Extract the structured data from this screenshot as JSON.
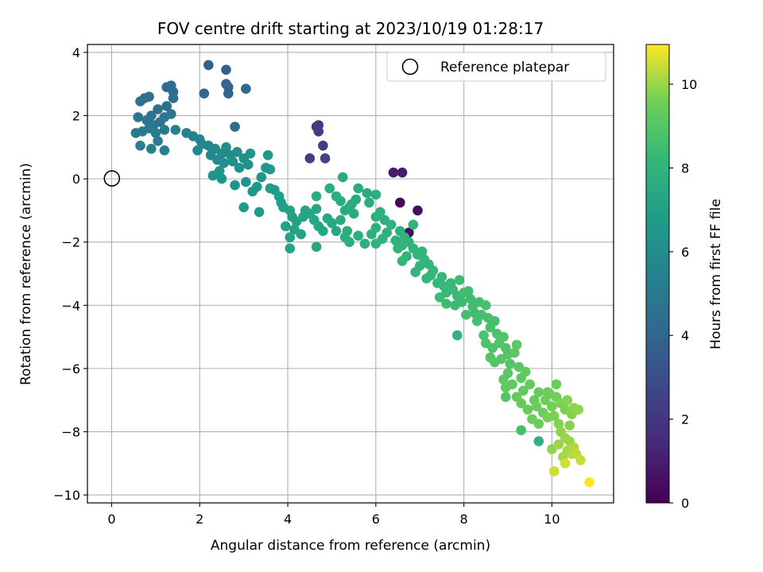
{
  "chart_data": {
    "type": "scatter",
    "title": "FOV centre drift starting at 2023/10/19 01:28:17",
    "xlabel": "Angular distance from reference (arcmin)",
    "ylabel": "Rotation from reference (arcmin)",
    "xlim": [
      -0.55,
      11.4
    ],
    "ylim": [
      -10.25,
      4.25
    ],
    "x_ticks": [
      0,
      2,
      4,
      6,
      8,
      10
    ],
    "y_ticks": [
      -10,
      -8,
      -6,
      -4,
      -2,
      0,
      2,
      4
    ],
    "grid": true,
    "legend": {
      "placement": "top-right",
      "entries": [
        "Reference platepar"
      ]
    },
    "reference_point": {
      "x": 0,
      "y": 0,
      "label": "Reference platepar"
    },
    "colorbar": {
      "label": "Hours from first FF file",
      "min": 0,
      "max": 10.95,
      "ticks": [
        0,
        2,
        4,
        6,
        8,
        10
      ],
      "colormap": "viridis"
    },
    "series": [
      {
        "points": [
          [
            6.55,
            -0.75,
            0.3
          ],
          [
            6.95,
            -1.0,
            0.4
          ],
          [
            6.6,
            0.2,
            0.9
          ],
          [
            6.4,
            0.2,
            1.0
          ],
          [
            6.75,
            -1.7,
            0.5
          ],
          [
            4.65,
            1.65,
            2.0
          ],
          [
            4.7,
            1.7,
            2.1
          ],
          [
            4.7,
            1.5,
            2.2
          ],
          [
            4.8,
            1.05,
            2.3
          ],
          [
            4.5,
            0.65,
            2.4
          ],
          [
            4.85,
            0.65,
            2.5
          ],
          [
            2.2,
            3.6,
            3.7
          ],
          [
            2.6,
            3.45,
            3.8
          ],
          [
            2.6,
            3.0,
            3.9
          ],
          [
            2.65,
            2.9,
            4.0
          ],
          [
            2.65,
            2.7,
            4.0
          ],
          [
            2.1,
            2.7,
            4.1
          ],
          [
            3.05,
            2.85,
            4.1
          ],
          [
            2.8,
            1.65,
            4.2
          ],
          [
            1.25,
            2.9,
            4.3
          ],
          [
            1.35,
            2.95,
            4.3
          ],
          [
            1.4,
            2.75,
            4.4
          ],
          [
            1.4,
            2.55,
            4.4
          ],
          [
            1.25,
            2.3,
            4.5
          ],
          [
            0.75,
            2.55,
            4.5
          ],
          [
            0.85,
            2.6,
            4.5
          ],
          [
            0.65,
            2.45,
            4.6
          ],
          [
            1.05,
            2.2,
            4.6
          ],
          [
            0.9,
            2.0,
            4.7
          ],
          [
            1.1,
            1.8,
            4.7
          ],
          [
            0.6,
            1.95,
            4.8
          ],
          [
            0.8,
            1.85,
            4.8
          ],
          [
            0.95,
            1.7,
            4.8
          ],
          [
            1.2,
            1.95,
            4.9
          ],
          [
            1.35,
            2.05,
            4.9
          ],
          [
            0.7,
            1.5,
            5.0
          ],
          [
            0.55,
            1.45,
            5.0
          ],
          [
            0.85,
            1.6,
            5.0
          ],
          [
            1.0,
            1.45,
            5.1
          ],
          [
            1.2,
            1.55,
            5.1
          ],
          [
            0.65,
            1.05,
            5.2
          ],
          [
            0.9,
            0.95,
            5.2
          ],
          [
            1.05,
            1.2,
            5.2
          ],
          [
            1.2,
            0.9,
            5.3
          ],
          [
            1.45,
            1.55,
            5.3
          ],
          [
            1.7,
            1.45,
            5.5
          ],
          [
            1.85,
            1.35,
            5.5
          ],
          [
            2.0,
            1.25,
            5.6
          ],
          [
            2.05,
            1.1,
            5.6
          ],
          [
            2.2,
            1.05,
            5.7
          ],
          [
            1.95,
            0.9,
            5.7
          ],
          [
            2.25,
            0.75,
            5.8
          ],
          [
            2.35,
            0.95,
            5.8
          ],
          [
            2.4,
            0.6,
            5.9
          ],
          [
            2.5,
            0.8,
            5.9
          ],
          [
            2.55,
            0.5,
            6.0
          ],
          [
            2.6,
            1.0,
            6.0
          ],
          [
            2.7,
            0.75,
            6.0
          ],
          [
            2.75,
            0.55,
            6.1
          ],
          [
            2.85,
            0.85,
            6.1
          ],
          [
            2.9,
            0.35,
            6.2
          ],
          [
            3.0,
            0.65,
            6.2
          ],
          [
            3.1,
            0.45,
            6.2
          ],
          [
            3.15,
            0.8,
            6.3
          ],
          [
            2.45,
            0.25,
            6.3
          ],
          [
            2.3,
            0.1,
            6.3
          ],
          [
            2.5,
            0.0,
            6.4
          ],
          [
            2.8,
            -0.2,
            6.4
          ],
          [
            3.05,
            -0.1,
            6.4
          ],
          [
            3.2,
            -0.4,
            6.5
          ],
          [
            3.3,
            -0.25,
            6.5
          ],
          [
            3.4,
            0.05,
            6.5
          ],
          [
            3.5,
            0.35,
            6.6
          ],
          [
            3.55,
            0.75,
            6.6
          ],
          [
            3.6,
            0.3,
            6.6
          ],
          [
            3.0,
            -0.9,
            6.7
          ],
          [
            3.35,
            -1.05,
            6.7
          ],
          [
            3.6,
            -0.3,
            6.8
          ],
          [
            3.7,
            -0.35,
            6.8
          ],
          [
            3.8,
            -0.55,
            6.9
          ],
          [
            3.85,
            -0.75,
            6.9
          ],
          [
            3.9,
            -0.9,
            6.9
          ],
          [
            4.05,
            -1.0,
            7.0
          ],
          [
            4.1,
            -1.2,
            7.0
          ],
          [
            4.2,
            -1.35,
            7.0
          ],
          [
            3.95,
            -1.5,
            7.1
          ],
          [
            4.15,
            -1.6,
            7.1
          ],
          [
            4.3,
            -1.75,
            7.1
          ],
          [
            4.05,
            -1.85,
            7.1
          ],
          [
            4.05,
            -2.2,
            7.2
          ],
          [
            4.35,
            -1.2,
            7.2
          ],
          [
            4.4,
            -1.0,
            7.2
          ],
          [
            4.5,
            -1.1,
            7.2
          ],
          [
            4.65,
            -0.95,
            7.3
          ],
          [
            4.6,
            -1.3,
            7.3
          ],
          [
            4.7,
            -1.5,
            7.3
          ],
          [
            4.8,
            -1.65,
            7.3
          ],
          [
            4.9,
            -1.25,
            7.4
          ],
          [
            5.0,
            -1.4,
            7.4
          ],
          [
            4.65,
            -2.15,
            7.4
          ],
          [
            5.1,
            -1.65,
            7.4
          ],
          [
            5.2,
            -1.3,
            7.5
          ],
          [
            5.3,
            -1.0,
            7.5
          ],
          [
            5.2,
            -0.7,
            7.5
          ],
          [
            5.4,
            -0.9,
            7.5
          ],
          [
            5.5,
            -1.1,
            7.5
          ],
          [
            5.55,
            -0.65,
            7.6
          ],
          [
            5.25,
            0.05,
            7.6
          ],
          [
            5.6,
            -0.3,
            7.6
          ],
          [
            5.8,
            -0.45,
            7.6
          ],
          [
            5.85,
            -0.75,
            7.6
          ],
          [
            5.1,
            -0.55,
            7.7
          ],
          [
            4.95,
            -0.3,
            7.7
          ],
          [
            4.65,
            -0.55,
            7.7
          ],
          [
            5.3,
            -1.85,
            7.7
          ],
          [
            5.35,
            -1.65,
            7.7
          ],
          [
            5.4,
            -2.0,
            7.7
          ],
          [
            5.6,
            -1.8,
            7.7
          ],
          [
            5.75,
            -2.05,
            7.8
          ],
          [
            5.9,
            -1.75,
            7.8
          ],
          [
            6.0,
            -1.55,
            7.8
          ],
          [
            6.0,
            -1.2,
            7.8
          ],
          [
            6.1,
            -1.05,
            7.8
          ],
          [
            6.2,
            -1.3,
            7.8
          ],
          [
            6.25,
            -1.7,
            7.8
          ],
          [
            6.0,
            -2.05,
            7.9
          ],
          [
            6.15,
            -1.9,
            7.9
          ],
          [
            6.35,
            -1.45,
            7.9
          ],
          [
            6.45,
            -1.95,
            7.9
          ],
          [
            6.55,
            -1.65,
            7.9
          ],
          [
            6.65,
            -1.85,
            7.9
          ],
          [
            6.5,
            -2.2,
            8.0
          ],
          [
            6.6,
            -2.1,
            8.0
          ],
          [
            6.75,
            -2.0,
            8.0
          ],
          [
            6.85,
            -1.45,
            8.0
          ],
          [
            6.85,
            -2.2,
            8.0
          ],
          [
            6.95,
            -2.4,
            8.0
          ],
          [
            6.7,
            -2.45,
            8.0
          ],
          [
            6.6,
            -2.6,
            8.1
          ],
          [
            7.05,
            -2.3,
            8.1
          ],
          [
            7.1,
            -2.55,
            8.1
          ],
          [
            7.0,
            -2.75,
            8.1
          ],
          [
            6.9,
            -2.95,
            8.1
          ],
          [
            7.2,
            -2.7,
            8.1
          ],
          [
            7.3,
            -2.9,
            8.2
          ],
          [
            7.25,
            -3.05,
            8.2
          ],
          [
            7.15,
            -3.15,
            8.2
          ],
          [
            7.4,
            -3.3,
            8.2
          ],
          [
            7.5,
            -3.1,
            8.2
          ],
          [
            7.55,
            -3.4,
            8.3
          ],
          [
            7.6,
            -3.6,
            8.3
          ],
          [
            7.7,
            -3.3,
            8.3
          ],
          [
            7.75,
            -3.5,
            8.3
          ],
          [
            7.85,
            -3.7,
            8.3
          ],
          [
            7.45,
            -3.75,
            8.4
          ],
          [
            7.6,
            -3.95,
            8.4
          ],
          [
            7.8,
            -4.0,
            8.4
          ],
          [
            7.95,
            -3.9,
            8.4
          ],
          [
            7.9,
            -3.2,
            8.4
          ],
          [
            8.0,
            -3.6,
            8.5
          ],
          [
            8.1,
            -3.55,
            8.5
          ],
          [
            8.15,
            -3.8,
            8.5
          ],
          [
            8.2,
            -4.05,
            8.5
          ],
          [
            8.25,
            -4.25,
            8.5
          ],
          [
            8.05,
            -4.3,
            8.6
          ],
          [
            8.3,
            -4.5,
            8.6
          ],
          [
            8.4,
            -4.3,
            8.6
          ],
          [
            8.35,
            -3.9,
            8.6
          ],
          [
            8.5,
            -4.0,
            8.7
          ],
          [
            8.55,
            -4.4,
            8.7
          ],
          [
            8.6,
            -4.7,
            8.7
          ],
          [
            8.7,
            -4.5,
            8.7
          ],
          [
            8.75,
            -4.9,
            8.8
          ],
          [
            8.45,
            -4.95,
            8.8
          ],
          [
            8.5,
            -5.2,
            8.8
          ],
          [
            8.65,
            -5.35,
            8.8
          ],
          [
            8.8,
            -5.2,
            8.9
          ],
          [
            8.9,
            -5.0,
            8.9
          ],
          [
            8.95,
            -5.35,
            8.9
          ],
          [
            9.0,
            -5.55,
            8.9
          ],
          [
            8.85,
            -5.7,
            9.0
          ],
          [
            8.7,
            -5.8,
            9.0
          ],
          [
            8.6,
            -5.65,
            9.0
          ],
          [
            9.05,
            -5.85,
            9.0
          ],
          [
            9.15,
            -5.5,
            9.1
          ],
          [
            9.2,
            -5.25,
            9.1
          ],
          [
            9.25,
            -5.95,
            9.1
          ],
          [
            9.0,
            -6.15,
            9.1
          ],
          [
            8.9,
            -6.35,
            9.2
          ],
          [
            8.95,
            -6.6,
            9.2
          ],
          [
            9.1,
            -6.5,
            9.2
          ],
          [
            9.3,
            -6.3,
            9.2
          ],
          [
            9.35,
            -6.7,
            9.3
          ],
          [
            9.5,
            -6.5,
            9.3
          ],
          [
            9.4,
            -6.1,
            9.3
          ],
          [
            9.2,
            -6.9,
            9.3
          ],
          [
            9.3,
            -7.1,
            9.4
          ],
          [
            9.45,
            -7.3,
            9.4
          ],
          [
            9.6,
            -7.0,
            9.4
          ],
          [
            9.7,
            -6.75,
            9.4
          ],
          [
            9.65,
            -7.2,
            9.5
          ],
          [
            9.8,
            -7.4,
            9.5
          ],
          [
            9.55,
            -7.6,
            9.5
          ],
          [
            9.7,
            -7.75,
            9.5
          ],
          [
            9.85,
            -7.0,
            9.6
          ],
          [
            9.95,
            -6.8,
            9.6
          ],
          [
            10.0,
            -7.2,
            9.6
          ],
          [
            10.1,
            -6.9,
            9.6
          ],
          [
            9.9,
            -7.55,
            9.7
          ],
          [
            10.05,
            -7.5,
            9.7
          ],
          [
            10.2,
            -7.1,
            9.7
          ],
          [
            10.3,
            -7.3,
            9.7
          ],
          [
            10.15,
            -7.75,
            9.8
          ],
          [
            10.35,
            -7.0,
            9.8
          ],
          [
            10.45,
            -7.45,
            9.8
          ],
          [
            10.4,
            -7.8,
            9.8
          ],
          [
            10.5,
            -7.25,
            9.9
          ],
          [
            10.6,
            -7.3,
            9.9
          ],
          [
            10.2,
            -8.0,
            9.9
          ],
          [
            10.3,
            -8.2,
            10.0
          ],
          [
            10.4,
            -8.3,
            10.0
          ],
          [
            10.15,
            -8.4,
            10.0
          ],
          [
            10.35,
            -8.6,
            10.1
          ],
          [
            10.25,
            -8.8,
            10.1
          ],
          [
            10.5,
            -8.5,
            10.2
          ],
          [
            10.45,
            -8.7,
            10.2
          ],
          [
            10.55,
            -8.7,
            10.3
          ],
          [
            10.65,
            -8.9,
            10.4
          ],
          [
            10.3,
            -9.0,
            10.5
          ],
          [
            10.05,
            -9.25,
            10.5
          ],
          [
            10.85,
            -9.6,
            10.9
          ],
          [
            9.7,
            -8.3,
            7.9
          ],
          [
            7.85,
            -4.95,
            7.9
          ],
          [
            6.0,
            -0.5,
            7.7
          ],
          [
            5.45,
            -0.8,
            7.6
          ],
          [
            9.3,
            -7.95,
            8.6
          ],
          [
            8.95,
            -6.9,
            9.0
          ],
          [
            10.1,
            -6.5,
            9.5
          ],
          [
            9.9,
            -6.75,
            9.6
          ],
          [
            10.0,
            -8.55,
            9.9
          ]
        ]
      }
    ]
  }
}
